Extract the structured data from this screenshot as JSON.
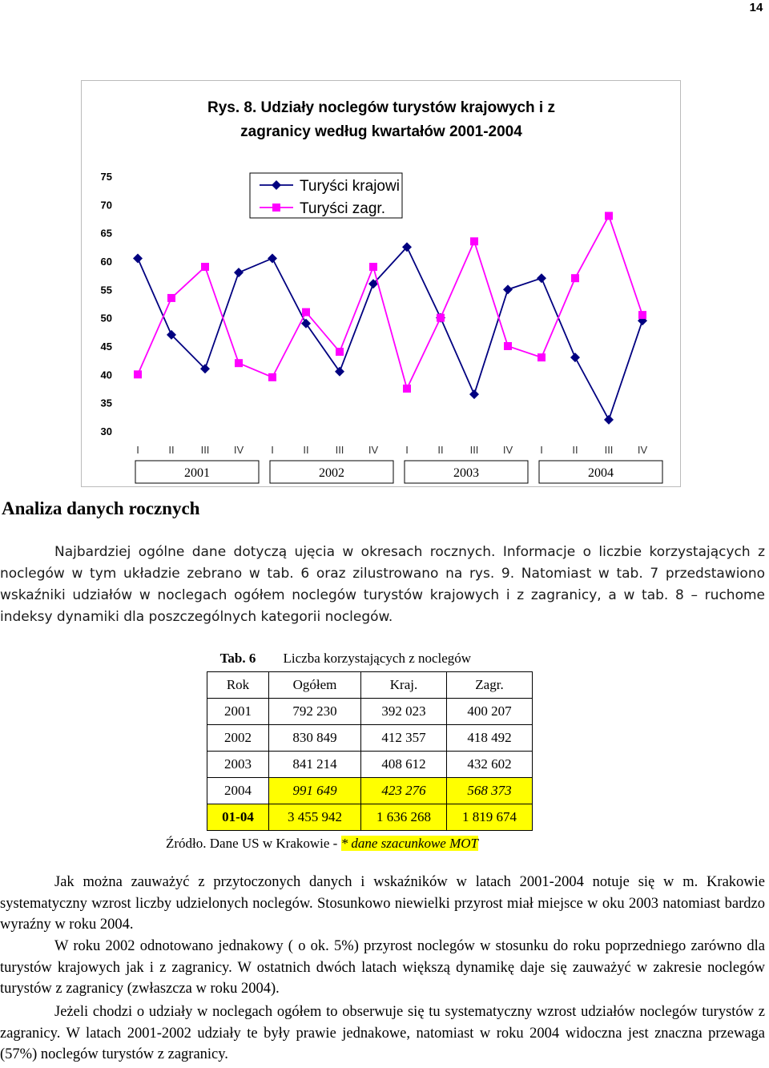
{
  "page_number": "14",
  "chart_data": {
    "type": "line",
    "title": "Rys. 8. Udziały noclegów turystów krajowych i z zagranicy według kwartałów 2001-2004",
    "title_lines": [
      "Rys. 8. Udziały noclegów turystów krajowych i z",
      "zagranicy według kwartałów 2001-2004"
    ],
    "categories": [
      "I",
      "II",
      "III",
      "IV",
      "I",
      "II",
      "III",
      "IV",
      "I",
      "II",
      "III",
      "IV",
      "I",
      "II",
      "III",
      "IV"
    ],
    "year_labels": [
      "2001",
      "2002",
      "2003",
      "2004"
    ],
    "ylim": [
      30,
      75
    ],
    "yticks": [
      75,
      70,
      65,
      60,
      55,
      50,
      45,
      40,
      35,
      30
    ],
    "grid": false,
    "legend_position": "top",
    "series": [
      {
        "name": "Turyści krajowi",
        "color": "#000080",
        "marker": "diamond",
        "values": [
          60.5,
          47,
          41,
          58,
          60.5,
          49,
          40.5,
          56,
          62.5,
          50,
          36.5,
          55,
          57,
          43,
          32,
          49.5
        ]
      },
      {
        "name": "Turyści zagr.",
        "color": "#ff00ff",
        "marker": "square",
        "values": [
          40,
          53.5,
          59,
          42,
          39.5,
          51,
          44,
          59,
          37.5,
          50,
          63.5,
          45,
          43,
          57,
          68,
          50.5
        ]
      }
    ]
  },
  "section_heading": "Analiza danych rocznych",
  "para1": "Najbardziej ogólne dane dotyczą ujęcia w okresach rocznych. Informacje o liczbie korzystających z noclegów w tym układzie zebrano w tab. 6 oraz zilustrowano na rys. 9. Natomiast w tab. 7 przedstawiono wskaźniki udziałów w noclegach ogółem noclegów turystów krajowych i z zagranicy, a w tab. 8 – ruchome indeksy dynamiki dla poszczególnych kategorii noclegów.",
  "table": {
    "caption_label": "Tab. 6",
    "caption_title": "Liczba korzystających z noclegów",
    "headers": [
      "Rok",
      "Ogółem",
      "Kraj.",
      "Zagr."
    ],
    "rows": [
      [
        "2001",
        "792 230",
        "392 023",
        "400 207"
      ],
      [
        "2002",
        "830 849",
        "412 357",
        "418 492"
      ],
      [
        "2003",
        "841 214",
        "408 612",
        "432 602"
      ],
      [
        "2004",
        "991 649",
        "423 276",
        "568 373"
      ],
      [
        "01-04",
        "3 455 942",
        "1 636 268",
        "1 819 674"
      ]
    ]
  },
  "source_prefix": "Źródło. Dane US w Krakowie - ",
  "source_estimate": "* dane szacunkowe MOT",
  "para2": "Jak można zauważyć z przytoczonych danych i wskaźników w latach 2001-2004 notuje się w m. Krakowie systematyczny wzrost liczby udzielonych noclegów. Stosunkowo niewielki przyrost miał miejsce w oku 2003 natomiast bardzo wyraźny w roku 2004.",
  "para3": "W roku 2002 odnotowano jednakowy ( o ok. 5%) przyrost noclegów w stosunku do roku poprzedniego zarówno dla turystów krajowych jak i z zagranicy. W ostatnich dwóch latach większą dynamikę daje się zauważyć w zakresie noclegów turystów z zagranicy (zwłaszcza w roku 2004).",
  "para4": "Jeżeli chodzi o udziały w noclegach ogółem to obserwuje się tu systematyczny wzrost udziałów noclegów turystów z zagranicy. W latach 2001-2002 udziały te były prawie jednakowe, natomiast w roku 2004 widoczna jest znaczna przewaga (57%) noclegów turystów z zagranicy."
}
